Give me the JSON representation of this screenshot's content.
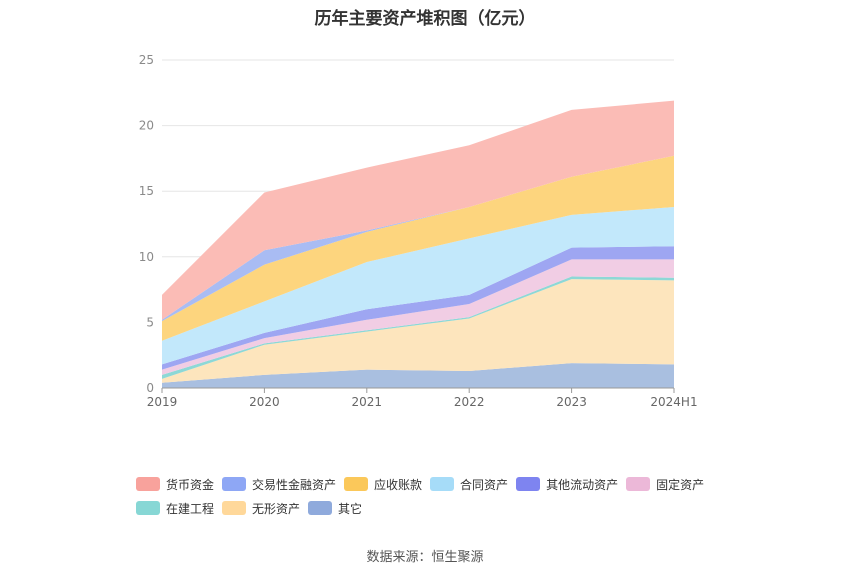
{
  "chart_data": {
    "type": "area",
    "stacked": true,
    "title": "历年主要资产堆积图（亿元）",
    "categories": [
      "2019",
      "2020",
      "2021",
      "2022",
      "2023",
      "2024H1"
    ],
    "ylim": [
      0,
      25
    ],
    "yticks": [
      0,
      5,
      10,
      15,
      20,
      25
    ],
    "grid": true,
    "legend_position": "bottom",
    "series": [
      {
        "name": "其它",
        "color": "#a9bfe0",
        "legend_color": "#8faadc",
        "values": [
          0.4,
          1.0,
          1.4,
          1.3,
          1.9,
          1.8
        ]
      },
      {
        "name": "无形资产",
        "color": "#fde5bd",
        "legend_color": "#ffd89a",
        "values": [
          0.3,
          2.3,
          2.9,
          4.0,
          6.4,
          6.4
        ]
      },
      {
        "name": "在建工程",
        "color": "#8dd8d6",
        "legend_color": "#87d7d5",
        "values": [
          0.3,
          0.1,
          0.1,
          0.1,
          0.2,
          0.2
        ]
      },
      {
        "name": "固定资产",
        "color": "#f1cde4",
        "legend_color": "#ecb8d8",
        "values": [
          0.4,
          0.4,
          0.8,
          1.0,
          1.3,
          1.4
        ]
      },
      {
        "name": "其他流动资产",
        "color": "#9ea6f2",
        "legend_color": "#7e84f0",
        "values": [
          0.4,
          0.4,
          0.8,
          0.7,
          0.9,
          1.0
        ]
      },
      {
        "name": "合同资产",
        "color": "#c2e8fb",
        "legend_color": "#a6dcf8",
        "values": [
          1.8,
          2.4,
          3.6,
          4.3,
          2.5,
          3.0
        ]
      },
      {
        "name": "应收账款",
        "color": "#fdd57e",
        "legend_color": "#fbc85a",
        "values": [
          1.5,
          2.8,
          2.3,
          2.4,
          2.9,
          3.9
        ]
      },
      {
        "name": "交易性金融资产",
        "color": "#a9bcf3",
        "legend_color": "#8ea7f5",
        "values": [
          0.1,
          1.1,
          0.1,
          0.0,
          0.0,
          0.0
        ]
      },
      {
        "name": "货币资金",
        "color": "#fbbcb6",
        "legend_color": "#f8a29c",
        "values": [
          1.9,
          4.4,
          4.8,
          4.7,
          5.1,
          4.2
        ]
      }
    ],
    "legend_order": [
      "货币资金",
      "交易性金融资产",
      "应收账款",
      "合同资产",
      "其他流动资产",
      "固定资产",
      "在建工程",
      "无形资产",
      "其它"
    ]
  },
  "source_note": "数据来源：恒生聚源"
}
